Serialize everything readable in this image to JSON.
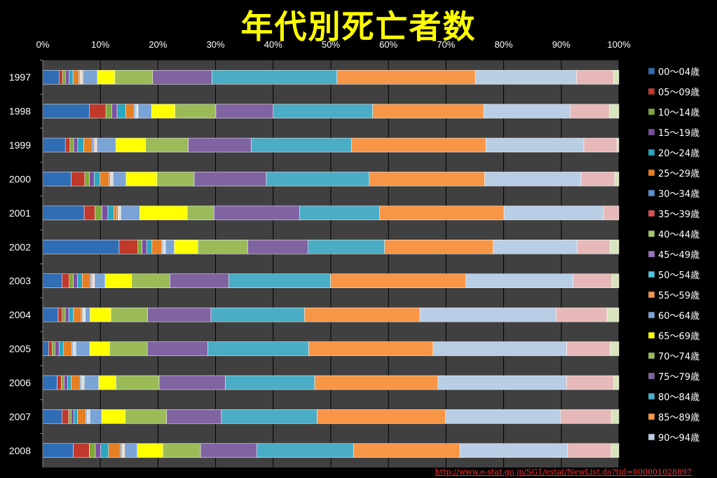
{
  "chart_data": {
    "type": "bar",
    "orientation": "horizontal",
    "stacked": "percent",
    "title": "年代別死亡者数",
    "xlabel": "",
    "ylabel": "",
    "xlim": [
      0,
      100
    ],
    "x_ticks": [
      "0%",
      "10%",
      "20%",
      "30%",
      "40%",
      "50%",
      "60%",
      "70%",
      "80%",
      "90%",
      "100%"
    ],
    "grid": "vertical",
    "legend_position": "right",
    "categories": [
      "1997",
      "1998",
      "1999",
      "2000",
      "2001",
      "2002",
      "2003",
      "2004",
      "2005",
      "2006",
      "2007",
      "2008"
    ],
    "series": [
      {
        "name": "00〜04歳",
        "color": "#2f6db5",
        "values": [
          2.8,
          8.0,
          3.8,
          4.8,
          7.0,
          13.0,
          3.3,
          2.6,
          1.0,
          2.5,
          3.3,
          5.1
        ]
      },
      {
        "name": "05〜09歳",
        "color": "#c0392b",
        "values": [
          0.6,
          2.8,
          0.8,
          2.3,
          1.8,
          3.2,
          1.2,
          0.7,
          0.6,
          0.7,
          1.1,
          2.7
        ]
      },
      {
        "name": "10〜14歳",
        "color": "#7fa83a",
        "values": [
          0.5,
          1.0,
          0.6,
          0.8,
          1.2,
          0.7,
          0.7,
          0.5,
          0.5,
          0.5,
          0.4,
          1.0
        ]
      },
      {
        "name": "15〜19歳",
        "color": "#7b4fa0",
        "values": [
          0.6,
          0.9,
          0.7,
          0.8,
          1.0,
          0.8,
          0.7,
          0.6,
          0.7,
          0.6,
          0.5,
          0.9
        ]
      },
      {
        "name": "20〜24歳",
        "color": "#2aa6bf",
        "values": [
          0.7,
          1.5,
          1.0,
          1.0,
          1.0,
          0.9,
          0.8,
          0.8,
          0.8,
          0.6,
          0.6,
          1.3
        ]
      },
      {
        "name": "25〜29歳",
        "color": "#e67e22",
        "values": [
          1.0,
          1.4,
          1.4,
          1.5,
          0.5,
          1.6,
          1.4,
          1.3,
          1.4,
          1.6,
          1.4,
          2.0
        ]
      },
      {
        "name": "30〜34歳",
        "color": "#5b8fd0",
        "values": [
          0.2,
          0.2,
          0.3,
          0.2,
          0.2,
          0.2,
          0.2,
          0.2,
          0.2,
          0.2,
          0.2,
          0.2
        ]
      },
      {
        "name": "35〜39歳",
        "color": "#d9534f",
        "values": [
          0.1,
          0.1,
          0.1,
          0.1,
          0.1,
          0.1,
          0.1,
          0.1,
          0.1,
          0.1,
          0.1,
          0.1
        ]
      },
      {
        "name": "40〜44歳",
        "color": "#a3c96b",
        "values": [
          0.1,
          0.1,
          0.1,
          0.1,
          0.1,
          0.1,
          0.1,
          0.1,
          0.1,
          0.1,
          0.1,
          0.1
        ]
      },
      {
        "name": "45〜49歳",
        "color": "#9b72c2",
        "values": [
          0.1,
          0.1,
          0.1,
          0.1,
          0.1,
          0.1,
          0.1,
          0.1,
          0.1,
          0.1,
          0.1,
          0.1
        ]
      },
      {
        "name": "50〜54歳",
        "color": "#4dc3d9",
        "values": [
          0.1,
          0.1,
          0.1,
          0.1,
          0.1,
          0.1,
          0.1,
          0.1,
          0.1,
          0.1,
          0.1,
          0.1
        ]
      },
      {
        "name": "55〜59歳",
        "color": "#f0954a",
        "values": [
          0.1,
          0.1,
          0.1,
          0.1,
          0.1,
          0.1,
          0.1,
          0.1,
          0.1,
          0.1,
          0.1,
          0.1
        ]
      },
      {
        "name": "60〜64歳",
        "color": "#7aa3d6",
        "values": [
          2.5,
          2.3,
          3.2,
          2.2,
          3.2,
          1.5,
          1.8,
          0.8,
          2.4,
          2.5,
          2.0,
          2.1
        ]
      },
      {
        "name": "65〜69歳",
        "color": "#ffff00",
        "values": [
          3.0,
          4.0,
          5.0,
          5.2,
          8.0,
          4.0,
          4.5,
          3.5,
          3.4,
          3.0,
          4.0,
          4.3
        ]
      },
      {
        "name": "70〜74歳",
        "color": "#9bbb59",
        "values": [
          6.5,
          7.0,
          7.2,
          6.3,
          4.5,
          8.5,
          6.5,
          6.2,
          6.5,
          7.5,
          7.0,
          6.3
        ]
      },
      {
        "name": "75〜79歳",
        "color": "#8064a2",
        "values": [
          10.2,
          9.8,
          10.6,
          12.2,
          14.5,
          10.3,
          10.0,
          10.7,
          10.4,
          11.5,
          9.3,
          9.4
        ]
      },
      {
        "name": "80〜84歳",
        "color": "#4bacc6",
        "values": [
          21.5,
          17.0,
          16.9,
          17.4,
          13.5,
          13.0,
          17.3,
          15.8,
          17.4,
          15.5,
          16.2,
          16.2
        ]
      },
      {
        "name": "85〜89歳",
        "color": "#f79646",
        "values": [
          23.8,
          19.0,
          22.6,
          19.5,
          21.0,
          18.5,
          23.0,
          19.5,
          21.4,
          21.4,
          21.8,
          17.8
        ]
      },
      {
        "name": "90〜94歳",
        "color": "#b9cde5",
        "values": [
          17.4,
          14.8,
          16.5,
          16.3,
          16.8,
          14.3,
          18.2,
          23.0,
          23.0,
          22.3,
          19.5,
          18.0
        ]
      },
      {
        "name": "",
        "color": "#e6b9b8",
        "values": [
          6.4,
          6.7,
          5.6,
          5.7,
          2.6,
          5.6,
          6.6,
          8.6,
          7.5,
          8.2,
          8.6,
          7.3
        ]
      },
      {
        "name": "",
        "color": "#d7e4bd",
        "values": [
          0.9,
          1.6,
          0.3,
          0.7,
          0.0,
          1.5,
          1.2,
          2.0,
          1.5,
          0.9,
          1.3,
          1.3
        ]
      }
    ]
  },
  "source_url": "http://www.e-stat.go.jp/SG1/estat/NewList.do?tid=000001028897"
}
